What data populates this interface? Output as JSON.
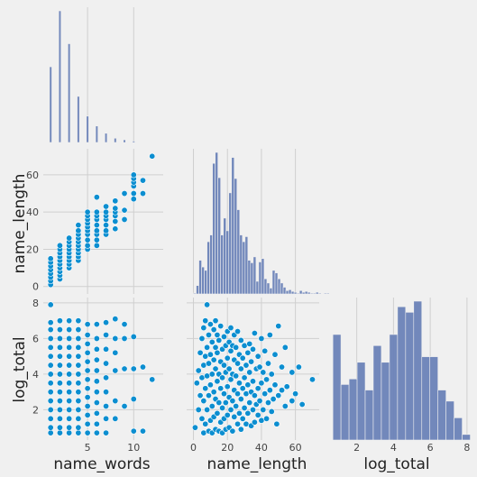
{
  "chart_data": {
    "type": "pairplot",
    "variables": [
      "name_words",
      "name_length",
      "log_total"
    ],
    "corner": true,
    "grid": true,
    "colors": {
      "points": "#0c8ed0",
      "bars": "#6c83b9",
      "background": "#f0f0f0"
    },
    "axes": {
      "name_words": {
        "range": [
          0.2,
          13.2
        ],
        "ticks": [
          5,
          10
        ]
      },
      "name_length": {
        "range": [
          -4,
          74
        ],
        "ticks": [
          0,
          20,
          40,
          60
        ]
      },
      "log_total": {
        "range": [
          0.3,
          8.3
        ],
        "ticks": [
          2,
          4,
          6,
          8
        ]
      }
    },
    "hist_name_words": {
      "bin_width": 0.25,
      "bins": [
        {
          "x": 1,
          "count": 230
        },
        {
          "x": 2,
          "count": 400
        },
        {
          "x": 3,
          "count": 300
        },
        {
          "x": 4,
          "count": 140
        },
        {
          "x": 5,
          "count": 80
        },
        {
          "x": 6,
          "count": 50
        },
        {
          "x": 7,
          "count": 28
        },
        {
          "x": 8,
          "count": 13
        },
        {
          "x": 9,
          "count": 8
        },
        {
          "x": 10,
          "count": 4
        },
        {
          "x": 12,
          "count": 1
        }
      ]
    },
    "hist_name_length": {
      "bin_width": 1.6,
      "counts": [
        1,
        10,
        40,
        32,
        28,
        62,
        70,
        155,
        168,
        138,
        70,
        90,
        75,
        120,
        162,
        137,
        100,
        70,
        62,
        68,
        40,
        37,
        44,
        15,
        38,
        42,
        18,
        13,
        7,
        28,
        25,
        18,
        13,
        8,
        4,
        5,
        3,
        2,
        1,
        4,
        2,
        3,
        2,
        1,
        1,
        2,
        1,
        0,
        1,
        1
      ]
    },
    "hist_log_total": {
      "bin_width": 0.44,
      "counts": [
        190,
        100,
        110,
        140,
        90,
        170,
        140,
        190,
        240,
        230,
        250,
        150,
        150,
        90,
        70,
        40,
        10
      ]
    },
    "scatter_length_vs_words": [
      [
        1,
        1
      ],
      [
        1,
        3
      ],
      [
        1,
        5
      ],
      [
        1,
        7
      ],
      [
        1,
        9
      ],
      [
        1,
        11
      ],
      [
        1,
        13
      ],
      [
        1,
        15
      ],
      [
        2,
        4
      ],
      [
        2,
        6
      ],
      [
        2,
        8
      ],
      [
        2,
        10
      ],
      [
        2,
        12
      ],
      [
        2,
        14
      ],
      [
        2,
        16
      ],
      [
        2,
        18
      ],
      [
        2,
        20
      ],
      [
        2,
        22
      ],
      [
        3,
        10
      ],
      [
        3,
        12
      ],
      [
        3,
        14
      ],
      [
        3,
        16
      ],
      [
        3,
        18
      ],
      [
        3,
        20
      ],
      [
        3,
        22
      ],
      [
        3,
        24
      ],
      [
        3,
        26
      ],
      [
        4,
        14
      ],
      [
        4,
        16
      ],
      [
        4,
        18
      ],
      [
        4,
        20
      ],
      [
        4,
        22
      ],
      [
        4,
        24
      ],
      [
        4,
        26
      ],
      [
        4,
        28
      ],
      [
        4,
        30
      ],
      [
        4,
        33
      ],
      [
        5,
        20
      ],
      [
        5,
        22
      ],
      [
        5,
        25
      ],
      [
        5,
        28
      ],
      [
        5,
        30
      ],
      [
        5,
        32
      ],
      [
        5,
        34
      ],
      [
        5,
        36
      ],
      [
        5,
        38
      ],
      [
        5,
        40
      ],
      [
        6,
        22
      ],
      [
        6,
        25
      ],
      [
        6,
        28
      ],
      [
        6,
        30
      ],
      [
        6,
        33
      ],
      [
        6,
        36
      ],
      [
        6,
        38
      ],
      [
        6,
        40
      ],
      [
        6,
        48
      ],
      [
        7,
        28
      ],
      [
        7,
        30
      ],
      [
        7,
        33
      ],
      [
        7,
        36
      ],
      [
        7,
        38
      ],
      [
        7,
        40
      ],
      [
        7,
        43
      ],
      [
        8,
        31
      ],
      [
        8,
        35
      ],
      [
        8,
        38
      ],
      [
        8,
        40
      ],
      [
        8,
        42
      ],
      [
        8,
        46
      ],
      [
        9,
        36
      ],
      [
        9,
        41
      ],
      [
        9,
        50
      ],
      [
        10,
        47
      ],
      [
        10,
        50
      ],
      [
        10,
        54
      ],
      [
        10,
        56
      ],
      [
        10,
        58
      ],
      [
        10,
        60
      ],
      [
        11,
        50
      ],
      [
        11,
        57
      ],
      [
        12,
        70
      ]
    ],
    "scatter_total_vs_words": [
      [
        1,
        0.7
      ],
      [
        1,
        1.0
      ],
      [
        1,
        1.5
      ],
      [
        1,
        2.0
      ],
      [
        1,
        2.5
      ],
      [
        1,
        3.0
      ],
      [
        1,
        3.5
      ],
      [
        1,
        4.0
      ],
      [
        1,
        4.5
      ],
      [
        1,
        5.0
      ],
      [
        1,
        5.5
      ],
      [
        1,
        6.0
      ],
      [
        1,
        6.5
      ],
      [
        1,
        6.9
      ],
      [
        1,
        7.9
      ],
      [
        2,
        0.7
      ],
      [
        2,
        1.0
      ],
      [
        2,
        1.5
      ],
      [
        2,
        2.0
      ],
      [
        2,
        2.5
      ],
      [
        2,
        3.0
      ],
      [
        2,
        3.5
      ],
      [
        2,
        4.0
      ],
      [
        2,
        4.5
      ],
      [
        2,
        5.0
      ],
      [
        2,
        5.5
      ],
      [
        2,
        6.0
      ],
      [
        2,
        6.5
      ],
      [
        2,
        7.0
      ],
      [
        3,
        0.7
      ],
      [
        3,
        1.0
      ],
      [
        3,
        1.5
      ],
      [
        3,
        2.0
      ],
      [
        3,
        2.5
      ],
      [
        3,
        3.0
      ],
      [
        3,
        3.5
      ],
      [
        3,
        4.0
      ],
      [
        3,
        4.5
      ],
      [
        3,
        5.0
      ],
      [
        3,
        5.5
      ],
      [
        3,
        6.0
      ],
      [
        3,
        6.5
      ],
      [
        3,
        7.0
      ],
      [
        4,
        0.7
      ],
      [
        4,
        1.0
      ],
      [
        4,
        1.5
      ],
      [
        4,
        2.0
      ],
      [
        4,
        2.5
      ],
      [
        4,
        3.0
      ],
      [
        4,
        3.5
      ],
      [
        4,
        4.0
      ],
      [
        4,
        4.5
      ],
      [
        4,
        5.0
      ],
      [
        4,
        5.5
      ],
      [
        4,
        6.0
      ],
      [
        4,
        6.5
      ],
      [
        4,
        7.0
      ],
      [
        5,
        0.7
      ],
      [
        5,
        1.2
      ],
      [
        5,
        1.7
      ],
      [
        5,
        2.2
      ],
      [
        5,
        2.7
      ],
      [
        5,
        3.2
      ],
      [
        5,
        3.7
      ],
      [
        5,
        4.2
      ],
      [
        5,
        4.7
      ],
      [
        5,
        5.2
      ],
      [
        5,
        5.7
      ],
      [
        5,
        6.2
      ],
      [
        5,
        6.8
      ],
      [
        6,
        0.7
      ],
      [
        6,
        1.2
      ],
      [
        6,
        1.8
      ],
      [
        6,
        2.4
      ],
      [
        6,
        3.0
      ],
      [
        6,
        3.6
      ],
      [
        6,
        4.2
      ],
      [
        6,
        4.8
      ],
      [
        6,
        5.4
      ],
      [
        6,
        6.0
      ],
      [
        6,
        6.8
      ],
      [
        7,
        0.7
      ],
      [
        7,
        1.5
      ],
      [
        7,
        2.2
      ],
      [
        7,
        3.0
      ],
      [
        7,
        3.8
      ],
      [
        7,
        4.6
      ],
      [
        7,
        5.4
      ],
      [
        7,
        6.2
      ],
      [
        7,
        6.9
      ],
      [
        8,
        1.5
      ],
      [
        8,
        2.5
      ],
      [
        8,
        4.2
      ],
      [
        8,
        5.2
      ],
      [
        8,
        6.0
      ],
      [
        8,
        7.1
      ],
      [
        9,
        2.2
      ],
      [
        9,
        4.3
      ],
      [
        9,
        6.0
      ],
      [
        9,
        6.8
      ],
      [
        10,
        0.8
      ],
      [
        10,
        2.6
      ],
      [
        10,
        4.3
      ],
      [
        10,
        6.1
      ],
      [
        11,
        0.8
      ],
      [
        11,
        4.4
      ],
      [
        12,
        3.7
      ]
    ],
    "scatter_total_vs_length": [
      [
        1,
        1.0
      ],
      [
        2,
        3.5
      ],
      [
        3,
        2.0
      ],
      [
        3,
        4.2
      ],
      [
        4,
        2.8
      ],
      [
        4,
        5.2
      ],
      [
        5,
        1.5
      ],
      [
        5,
        3.8
      ],
      [
        5,
        6.0
      ],
      [
        6,
        0.7
      ],
      [
        6,
        2.5
      ],
      [
        6,
        4.5
      ],
      [
        6,
        6.6
      ],
      [
        7,
        1.2
      ],
      [
        7,
        3.2
      ],
      [
        7,
        5.0
      ],
      [
        7,
        7.0
      ],
      [
        8,
        2.0
      ],
      [
        8,
        3.9
      ],
      [
        8,
        5.5
      ],
      [
        8,
        7.9
      ],
      [
        9,
        0.8
      ],
      [
        9,
        2.8
      ],
      [
        9,
        4.6
      ],
      [
        9,
        6.2
      ],
      [
        10,
        1.4
      ],
      [
        10,
        3.4
      ],
      [
        10,
        5.1
      ],
      [
        10,
        6.8
      ],
      [
        11,
        0.7
      ],
      [
        11,
        2.2
      ],
      [
        11,
        4.0
      ],
      [
        11,
        5.8
      ],
      [
        12,
        1.6
      ],
      [
        12,
        3.0
      ],
      [
        12,
        4.8
      ],
      [
        12,
        6.5
      ],
      [
        13,
        0.9
      ],
      [
        13,
        2.6
      ],
      [
        13,
        4.3
      ],
      [
        13,
        5.5
      ],
      [
        13,
        7.0
      ],
      [
        14,
        1.8
      ],
      [
        14,
        3.6
      ],
      [
        14,
        5.2
      ],
      [
        14,
        6.2
      ],
      [
        15,
        0.8
      ],
      [
        15,
        2.4
      ],
      [
        15,
        4.0
      ],
      [
        15,
        5.9
      ],
      [
        16,
        1.3
      ],
      [
        16,
        3.2
      ],
      [
        16,
        4.7
      ],
      [
        16,
        6.7
      ],
      [
        17,
        0.7
      ],
      [
        17,
        2.1
      ],
      [
        17,
        3.8
      ],
      [
        17,
        5.4
      ],
      [
        18,
        1.5
      ],
      [
        18,
        2.9
      ],
      [
        18,
        4.5
      ],
      [
        18,
        6.1
      ],
      [
        19,
        0.9
      ],
      [
        19,
        2.4
      ],
      [
        19,
        4.1
      ],
      [
        19,
        5.6
      ],
      [
        20,
        1.7
      ],
      [
        20,
        3.3
      ],
      [
        20,
        4.9
      ],
      [
        20,
        6.4
      ],
      [
        21,
        1.0
      ],
      [
        21,
        2.7
      ],
      [
        21,
        4.3
      ],
      [
        21,
        5.8
      ],
      [
        22,
        2.0
      ],
      [
        22,
        3.7
      ],
      [
        22,
        5.3
      ],
      [
        22,
        6.6
      ],
      [
        23,
        0.8
      ],
      [
        23,
        2.5
      ],
      [
        23,
        4.0
      ],
      [
        23,
        5.6
      ],
      [
        24,
        1.6
      ],
      [
        24,
        3.1
      ],
      [
        24,
        4.8
      ],
      [
        24,
        6.2
      ],
      [
        25,
        2.2
      ],
      [
        25,
        3.9
      ],
      [
        25,
        5.5
      ],
      [
        26,
        1.2
      ],
      [
        26,
        2.9
      ],
      [
        26,
        4.6
      ],
      [
        26,
        6.4
      ],
      [
        27,
        1.8
      ],
      [
        27,
        3.5
      ],
      [
        27,
        5.1
      ],
      [
        28,
        0.9
      ],
      [
        28,
        2.6
      ],
      [
        28,
        4.3
      ],
      [
        28,
        5.9
      ],
      [
        29,
        1.5
      ],
      [
        29,
        3.2
      ],
      [
        29,
        4.9
      ],
      [
        30,
        2.1
      ],
      [
        30,
        3.8
      ],
      [
        30,
        5.6
      ],
      [
        31,
        1.2
      ],
      [
        31,
        2.9
      ],
      [
        31,
        4.5
      ],
      [
        32,
        1.8
      ],
      [
        32,
        3.4
      ],
      [
        32,
        5.2
      ],
      [
        33,
        2.4
      ],
      [
        33,
        4.1
      ],
      [
        33,
        5.7
      ],
      [
        34,
        1.1
      ],
      [
        34,
        3.0
      ],
      [
        34,
        4.7
      ],
      [
        35,
        2.0
      ],
      [
        35,
        3.6
      ],
      [
        35,
        5.4
      ],
      [
        36,
        1.3
      ],
      [
        36,
        2.8
      ],
      [
        36,
        6.3
      ],
      [
        37,
        2.3
      ],
      [
        37,
        4.3
      ],
      [
        38,
        1.7
      ],
      [
        38,
        3.2
      ],
      [
        38,
        5.0
      ],
      [
        39,
        2.5
      ],
      [
        39,
        4.4
      ],
      [
        40,
        1.4
      ],
      [
        40,
        3.5
      ],
      [
        40,
        6.0
      ],
      [
        41,
        2.0
      ],
      [
        41,
        4.1
      ],
      [
        42,
        2.9
      ],
      [
        42,
        5.3
      ],
      [
        43,
        1.5
      ],
      [
        43,
        3.7
      ],
      [
        44,
        2.4
      ],
      [
        44,
        4.6
      ],
      [
        45,
        3.1
      ],
      [
        45,
        6.2
      ],
      [
        46,
        1.9
      ],
      [
        46,
        4.0
      ],
      [
        47,
        2.6
      ],
      [
        48,
        3.4
      ],
      [
        48,
        5.1
      ],
      [
        49,
        1.2
      ],
      [
        50,
        2.8
      ],
      [
        50,
        6.7
      ],
      [
        52,
        3.1
      ],
      [
        52,
        4.4
      ],
      [
        54,
        2.2
      ],
      [
        54,
        5.5
      ],
      [
        55,
        3.3
      ],
      [
        58,
        2.5
      ],
      [
        58,
        4.1
      ],
      [
        60,
        2.9
      ],
      [
        62,
        4.4
      ],
      [
        64,
        2.3
      ],
      [
        70,
        3.7
      ]
    ]
  },
  "labels": {
    "x": [
      "name_words",
      "name_length",
      "log_total"
    ],
    "y": [
      "name_length",
      "log_total"
    ]
  }
}
